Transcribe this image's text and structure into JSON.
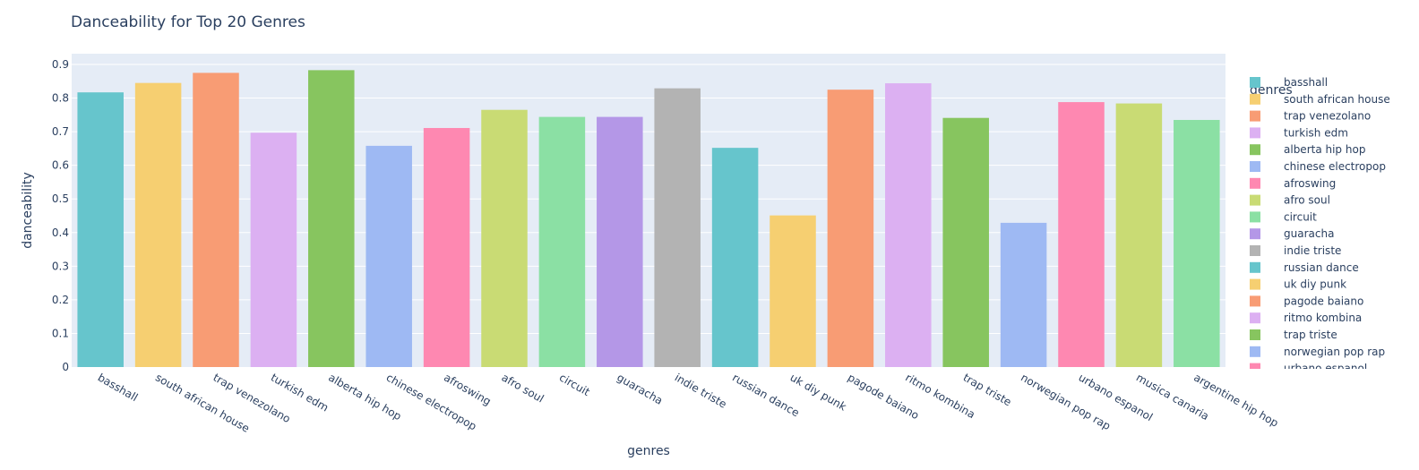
{
  "chart_data": {
    "type": "bar",
    "title": "Danceability for Top 20 Genres",
    "xlabel": "genres",
    "ylabel": "danceability",
    "ylim": [
      0,
      0.9
    ],
    "yticks": [
      0,
      0.1,
      0.2,
      0.3,
      0.4,
      0.5,
      0.6,
      0.7,
      0.8,
      0.9
    ],
    "ytick_labels": [
      "0",
      "0.1",
      "0.2",
      "0.3",
      "0.4",
      "0.5",
      "0.6",
      "0.7",
      "0.8",
      "0.9"
    ],
    "grid": true,
    "legend_title": "genres",
    "legend_position": "right",
    "categories": [
      "basshall",
      "south african house",
      "trap venezolano",
      "turkish edm",
      "alberta hip hop",
      "chinese electropop",
      "afroswing",
      "afro soul",
      "circuit",
      "guaracha",
      "indie triste",
      "russian dance",
      "uk diy punk",
      "pagode baiano",
      "ritmo kombina",
      "trap triste",
      "norwegian pop rap",
      "urbano espanol",
      "musica canaria",
      "argentine hip hop"
    ],
    "values": [
      0.817,
      0.845,
      0.875,
      0.697,
      0.883,
      0.658,
      0.711,
      0.765,
      0.744,
      0.744,
      0.829,
      0.652,
      0.451,
      0.825,
      0.844,
      0.741,
      0.429,
      0.788,
      0.784,
      0.735
    ],
    "colors": [
      "#66C5CC",
      "#F6CF71",
      "#F89C74",
      "#DCB0F2",
      "#87C55F",
      "#9EB9F3",
      "#FE88B1",
      "#C9DB74",
      "#8BE0A4",
      "#B497E7",
      "#B3B3B3",
      "#66C5CC",
      "#F6CF71",
      "#F89C74",
      "#DCB0F2",
      "#87C55F",
      "#9EB9F3",
      "#FE88B1",
      "#C9DB74",
      "#8BE0A4"
    ]
  }
}
